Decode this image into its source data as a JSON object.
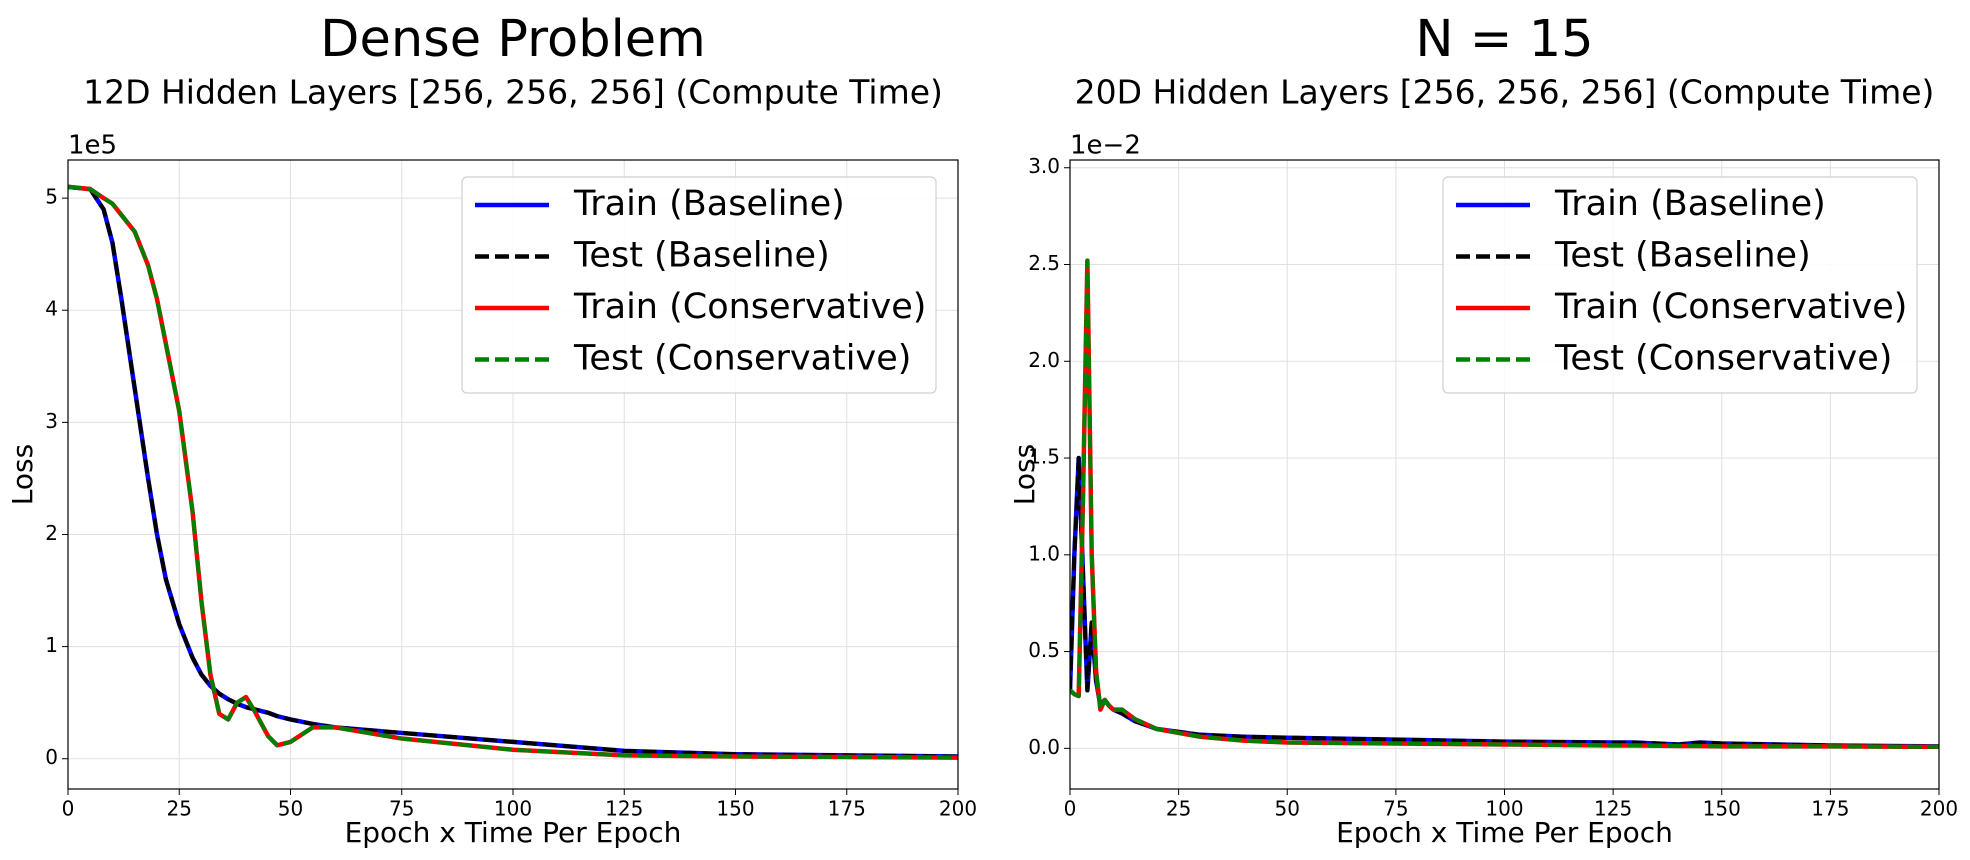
{
  "chart_data": [
    {
      "type": "line",
      "title": "Dense Problem",
      "subtitle": "12D Hidden Layers [256, 256, 256] (Compute Time)",
      "x_label": "Epoch x Time Per Epoch",
      "y_label": "Loss",
      "offset_label": "1e5",
      "x": [
        0,
        5,
        8,
        10,
        12,
        15,
        18,
        20,
        22,
        25,
        28,
        30,
        32,
        34,
        36,
        38,
        40,
        42,
        45,
        47,
        50,
        55,
        60,
        75,
        100,
        125,
        150,
        175,
        200
      ],
      "series": [
        {
          "name": "Train (Baseline)",
          "color": "#0000ff",
          "linestyle": "solid",
          "values": [
            5.1,
            5.08,
            4.9,
            4.6,
            4.1,
            3.3,
            2.5,
            2.0,
            1.6,
            1.2,
            0.9,
            0.75,
            0.65,
            0.58,
            0.53,
            0.49,
            0.46,
            0.44,
            0.41,
            0.38,
            0.35,
            0.31,
            0.28,
            0.23,
            0.15,
            0.07,
            0.04,
            0.03,
            0.02
          ]
        },
        {
          "name": "Test (Baseline)",
          "color": "#000000",
          "linestyle": "dashed",
          "values": [
            5.1,
            5.08,
            4.9,
            4.6,
            4.1,
            3.3,
            2.5,
            2.0,
            1.6,
            1.2,
            0.9,
            0.75,
            0.65,
            0.58,
            0.53,
            0.49,
            0.46,
            0.44,
            0.41,
            0.38,
            0.35,
            0.31,
            0.28,
            0.23,
            0.15,
            0.07,
            0.04,
            0.03,
            0.02
          ]
        },
        {
          "name": "Train (Conservative)",
          "color": "#ff0000",
          "linestyle": "solid",
          "values": [
            5.1,
            5.08,
            5.0,
            4.95,
            4.85,
            4.7,
            4.4,
            4.1,
            3.7,
            3.1,
            2.2,
            1.4,
            0.75,
            0.4,
            0.35,
            0.5,
            0.55,
            0.42,
            0.2,
            0.12,
            0.15,
            0.28,
            0.28,
            0.18,
            0.08,
            0.03,
            0.02,
            0.015,
            0.01
          ]
        },
        {
          "name": "Test (Conservative)",
          "color": "#008000",
          "linestyle": "dashed",
          "values": [
            5.1,
            5.08,
            5.0,
            4.95,
            4.85,
            4.7,
            4.4,
            4.1,
            3.7,
            3.1,
            2.2,
            1.4,
            0.75,
            0.4,
            0.35,
            0.5,
            0.55,
            0.42,
            0.2,
            0.12,
            0.15,
            0.28,
            0.28,
            0.18,
            0.08,
            0.03,
            0.02,
            0.015,
            0.01
          ]
        }
      ],
      "xlim": [
        0,
        200
      ],
      "xticks": [
        0,
        25,
        50,
        75,
        100,
        125,
        150,
        175,
        200
      ],
      "ylim": [
        -0.27,
        5.34
      ],
      "yticks": [
        0,
        1,
        2,
        3,
        4,
        5
      ],
      "grid": true,
      "legend": "upper right"
    },
    {
      "type": "line",
      "title": "N = 15",
      "subtitle": "20D Hidden Layers [256, 256, 256] (Compute Time)",
      "x_label": "Epoch x Time Per Epoch",
      "y_label": "Loss",
      "offset_label": "1e−2",
      "x": [
        0,
        1,
        2,
        3,
        4,
        5,
        6,
        7,
        8,
        9,
        10,
        12,
        15,
        20,
        25,
        30,
        40,
        50,
        75,
        100,
        125,
        130,
        140,
        145,
        150,
        175,
        200
      ],
      "series": [
        {
          "name": "Train (Baseline)",
          "color": "#0000ff",
          "linestyle": "solid",
          "values": [
            0.3,
            1.0,
            1.5,
            0.9,
            0.3,
            0.65,
            0.35,
            0.22,
            0.25,
            0.22,
            0.2,
            0.18,
            0.14,
            0.1,
            0.085,
            0.07,
            0.06,
            0.055,
            0.045,
            0.035,
            0.03,
            0.03,
            0.02,
            0.03,
            0.025,
            0.015,
            0.01
          ]
        },
        {
          "name": "Test (Baseline)",
          "color": "#000000",
          "linestyle": "dashed",
          "values": [
            0.3,
            1.0,
            1.5,
            0.9,
            0.3,
            0.65,
            0.35,
            0.22,
            0.25,
            0.22,
            0.2,
            0.18,
            0.14,
            0.1,
            0.085,
            0.07,
            0.06,
            0.055,
            0.045,
            0.035,
            0.03,
            0.03,
            0.02,
            0.03,
            0.025,
            0.015,
            0.01
          ]
        },
        {
          "name": "Train (Conservative)",
          "color": "#ff0000",
          "linestyle": "solid",
          "values": [
            0.3,
            0.28,
            0.27,
            1.3,
            2.52,
            1.0,
            0.4,
            0.2,
            0.25,
            0.22,
            0.2,
            0.2,
            0.15,
            0.1,
            0.08,
            0.06,
            0.04,
            0.03,
            0.025,
            0.02,
            0.015,
            0.015,
            0.012,
            0.012,
            0.01,
            0.01,
            0.008
          ]
        },
        {
          "name": "Test (Conservative)",
          "color": "#008000",
          "linestyle": "dashed",
          "values": [
            0.3,
            0.28,
            0.27,
            1.3,
            2.52,
            1.0,
            0.4,
            0.2,
            0.25,
            0.22,
            0.2,
            0.2,
            0.15,
            0.1,
            0.08,
            0.06,
            0.04,
            0.03,
            0.025,
            0.02,
            0.015,
            0.015,
            0.012,
            0.012,
            0.01,
            0.01,
            0.008
          ]
        }
      ],
      "xlim": [
        0,
        200
      ],
      "xticks": [
        0,
        25,
        50,
        75,
        100,
        125,
        150,
        175,
        200
      ],
      "ylim": [
        -0.21,
        3.04
      ],
      "yticks": [
        {
          "value": 0,
          "label": "0.0"
        },
        {
          "value": 0.5,
          "label": "0.5"
        },
        {
          "value": 1,
          "label": "1.0"
        },
        {
          "value": 1.5,
          "label": "1.5"
        },
        {
          "value": 2,
          "label": "2.0"
        },
        {
          "value": 2.5,
          "label": "2.5"
        },
        {
          "value": 3,
          "label": "3.0"
        }
      ],
      "grid": true,
      "legend": "upper right"
    }
  ]
}
